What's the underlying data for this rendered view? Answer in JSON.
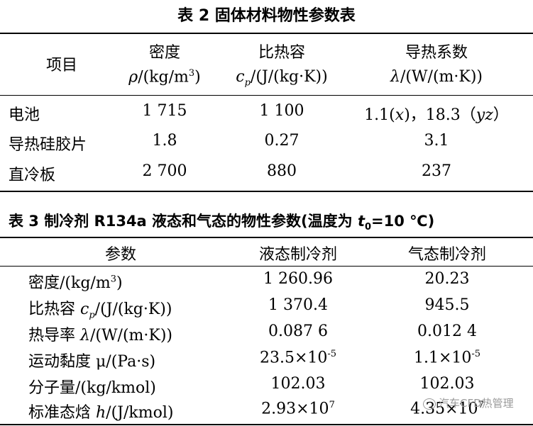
{
  "table2": {
    "title": "表 2  固体材料物性参数表",
    "headers": [
      {
        "name": "项目",
        "unit": ""
      },
      {
        "name": "密度",
        "unit": "ρ/(kg/m³)"
      },
      {
        "name": "比热容",
        "unit": "cp/(J/(kg·K))"
      },
      {
        "name": "导热系数",
        "unit": "λ/(W/(m·K))"
      }
    ],
    "rows": [
      [
        "电池",
        "1 715",
        "1 100",
        "1.1(x)，18.3（yz）"
      ],
      [
        "导热硅胶片",
        "1.8",
        "0.27",
        "3.1"
      ],
      [
        "直冷板",
        "2 700",
        "880",
        "237"
      ]
    ]
  },
  "table3": {
    "title": "表 3  制冷剂 R134a 液态和气态的物性参数(温度为 t0=10 ℃)",
    "headers": [
      "参数",
      "液态制冷剂",
      "气态制冷剂"
    ],
    "rows": [
      [
        "密度/(kg/m³)",
        "1 260.96",
        "20.23"
      ],
      [
        "比热容 cp/(J/(kg·K))",
        "1 370.4",
        "945.5"
      ],
      [
        "热导率 λ/(W/(m·K))",
        "0.087 6",
        "0.012 4"
      ],
      [
        "运动黏度 μ/(Pa·s)",
        "23.5×10⁻⁵",
        "1.1×10⁻⁵"
      ],
      [
        "分子量/(kg/kmol)",
        "102.03",
        "102.03"
      ],
      [
        "标准态焓 h/(J/kmol)",
        "2.93×10⁷",
        "4.35×10⁷"
      ]
    ]
  },
  "watermark": "汽车CFD热管理"
}
